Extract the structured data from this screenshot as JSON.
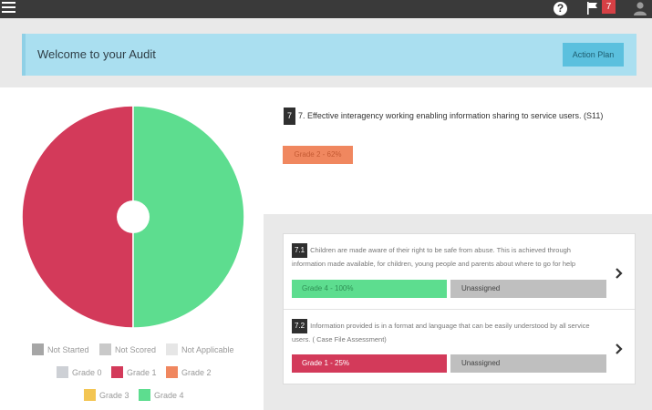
{
  "topbar": {
    "help_label": "?",
    "notifications_count": "7"
  },
  "banner": {
    "title": "Welcome to your Audit",
    "action_label": "Action Plan"
  },
  "chart_data": {
    "type": "pie",
    "categories": [
      "Grade 1",
      "Grade 4"
    ],
    "values": [
      50,
      50
    ],
    "colors": [
      "#d33a5a",
      "#5ddd8f"
    ],
    "donut": true
  },
  "legend": [
    {
      "label": "Not Started",
      "color": "#a6a6a6"
    },
    {
      "label": "Not Scored",
      "color": "#c9c9c9"
    },
    {
      "label": "Not Applicable",
      "color": "#e6e6e6"
    },
    {
      "label": "Grade 0",
      "color": "#cdd0d5"
    },
    {
      "label": "Grade 1",
      "color": "#d33a5a"
    },
    {
      "label": "Grade 2",
      "color": "#f0875f"
    },
    {
      "label": "Grade 3",
      "color": "#f3c552"
    },
    {
      "label": "Grade 4",
      "color": "#5ddd8f"
    }
  ],
  "question": {
    "number": "7",
    "title": "7. Effective interagency working enabling information sharing to service users. (S11)",
    "grade": "Grade 2 - 62%"
  },
  "subquestions": [
    {
      "number": "7.1",
      "text": "Children are made aware of their right to be safe from abuse. This is achieved through information made available, for children, young people and parents about where to go for help",
      "grade": "Grade 4 - 100%",
      "grade_color": "#5ddd8f",
      "grade_text_color": "#2f8f55",
      "assigned": "Unassigned"
    },
    {
      "number": "7.2",
      "text": "Information provided is in a format and language that can be easily understood by all service users. ( Case File Assessment)",
      "grade": "Grade 1 - 25%",
      "grade_color": "#d33a5a",
      "grade_text_color": "#ffffff",
      "assigned": "Unassigned"
    }
  ]
}
